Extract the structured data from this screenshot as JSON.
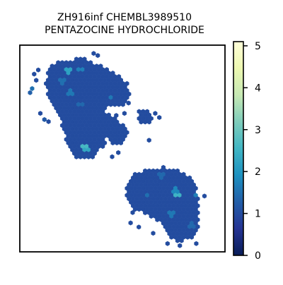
{
  "chart_data": {
    "type": "heatmap",
    "subtype": "hexbin",
    "title": [
      "ZH916inf CHEMBL3989510",
      "PENTAZOCINE HYDROCHLORIDE"
    ],
    "xlabel": "",
    "ylabel": "",
    "grid": false,
    "axis_ticks": false,
    "x_range": [
      0,
      100
    ],
    "y_range": [
      0,
      100
    ],
    "colormap": "YlGnBu_r",
    "colorbar": {
      "range": [
        0,
        5.1
      ],
      "ticks": [
        0,
        1,
        2,
        3,
        4,
        5
      ],
      "colors": [
        "#081d58",
        "#253494",
        "#225ea8",
        "#1d91c0",
        "#41b6c4",
        "#7fcdbb",
        "#c7e9b4",
        "#edf8b1",
        "#ffffd9"
      ]
    },
    "clusters": [
      {
        "name": "upper-left",
        "outline": [
          [
            14,
            90
          ],
          [
            20,
            92
          ],
          [
            30,
            94
          ],
          [
            40,
            90
          ],
          [
            47,
            86
          ],
          [
            52,
            82
          ],
          [
            54,
            77
          ],
          [
            51,
            71
          ],
          [
            43,
            71
          ],
          [
            41,
            65
          ],
          [
            43,
            58
          ],
          [
            41,
            51
          ],
          [
            35,
            45
          ],
          [
            29,
            44
          ],
          [
            24,
            50
          ],
          [
            21,
            58
          ],
          [
            19,
            67
          ],
          [
            15,
            73
          ],
          [
            12,
            80
          ]
        ],
        "base": 1
      },
      {
        "name": "upper-left-right-arm",
        "outline": [
          [
            39,
            68
          ],
          [
            44,
            67
          ],
          [
            49,
            63
          ],
          [
            53,
            58
          ],
          [
            51,
            53
          ],
          [
            47,
            51
          ],
          [
            43,
            55
          ],
          [
            41,
            60
          ]
        ],
        "base": 1
      },
      {
        "name": "mid-island",
        "outline": [
          [
            58,
            68
          ],
          [
            63,
            68
          ],
          [
            66,
            65
          ],
          [
            63,
            61
          ],
          [
            58,
            62
          ]
        ],
        "base": 1
      },
      {
        "name": "lower-right",
        "outline": [
          [
            55,
            38
          ],
          [
            62,
            40
          ],
          [
            70,
            41
          ],
          [
            76,
            40
          ],
          [
            82,
            37
          ],
          [
            86,
            32
          ],
          [
            87,
            24
          ],
          [
            87,
            12
          ],
          [
            84,
            6
          ],
          [
            76,
            5
          ],
          [
            71,
            9
          ],
          [
            68,
            15
          ],
          [
            62,
            18
          ],
          [
            56,
            20
          ],
          [
            52,
            26
          ],
          [
            52,
            32
          ]
        ],
        "base": 1
      }
    ],
    "hot_bins": [
      {
        "x": 24,
        "y": 87,
        "value": 2.2
      },
      {
        "x": 30,
        "y": 88,
        "value": 1.7
      },
      {
        "x": 25,
        "y": 77,
        "value": 1.6
      },
      {
        "x": 21,
        "y": 82,
        "value": 1.5
      },
      {
        "x": 44,
        "y": 75,
        "value": 1.6
      },
      {
        "x": 32,
        "y": 51,
        "value": 2.6
      },
      {
        "x": 33,
        "y": 49,
        "value": 2.3
      },
      {
        "x": 40,
        "y": 41,
        "value": 1.9
      },
      {
        "x": 77,
        "y": 28,
        "value": 2.5
      },
      {
        "x": 76,
        "y": 30,
        "value": 1.8
      },
      {
        "x": 74,
        "y": 18,
        "value": 1.6
      },
      {
        "x": 69,
        "y": 37,
        "value": 1.4
      },
      {
        "x": 86,
        "y": 27,
        "value": 1.7
      },
      {
        "x": 62,
        "y": 27,
        "value": 1.5
      },
      {
        "x": 84,
        "y": 13,
        "value": 1.4
      },
      {
        "x": 30,
        "y": 71,
        "value": 1.4
      }
    ],
    "outliers": [
      {
        "x": 6,
        "y": 79,
        "value": 1.5
      },
      {
        "x": 5,
        "y": 77,
        "value": 1.3
      },
      {
        "x": 8,
        "y": 83,
        "value": 1
      },
      {
        "x": 10,
        "y": 67,
        "value": 1
      },
      {
        "x": 12,
        "y": 64,
        "value": 1.2
      },
      {
        "x": 14,
        "y": 63,
        "value": 1
      },
      {
        "x": 7,
        "y": 86,
        "value": 1
      },
      {
        "x": 9,
        "y": 88,
        "value": 1
      },
      {
        "x": 36,
        "y": 96,
        "value": 1
      },
      {
        "x": 38,
        "y": 95,
        "value": 1
      },
      {
        "x": 47,
        "y": 66,
        "value": 1
      },
      {
        "x": 51,
        "y": 67,
        "value": 1
      },
      {
        "x": 53,
        "y": 72,
        "value": 1
      },
      {
        "x": 66,
        "y": 67,
        "value": 1
      },
      {
        "x": 68,
        "y": 65,
        "value": 1
      },
      {
        "x": 63,
        "y": 54,
        "value": 1
      },
      {
        "x": 45,
        "y": 46,
        "value": 1
      },
      {
        "x": 48,
        "y": 48,
        "value": 1
      },
      {
        "x": 55,
        "y": 19,
        "value": 1
      },
      {
        "x": 54,
        "y": 14,
        "value": 1
      },
      {
        "x": 58,
        "y": 12,
        "value": 1
      },
      {
        "x": 65,
        "y": 9,
        "value": 1
      },
      {
        "x": 72,
        "y": 4,
        "value": 1
      },
      {
        "x": 78,
        "y": 3,
        "value": 1
      },
      {
        "x": 86,
        "y": 4,
        "value": 1
      },
      {
        "x": 90,
        "y": 27,
        "value": 1
      }
    ]
  }
}
